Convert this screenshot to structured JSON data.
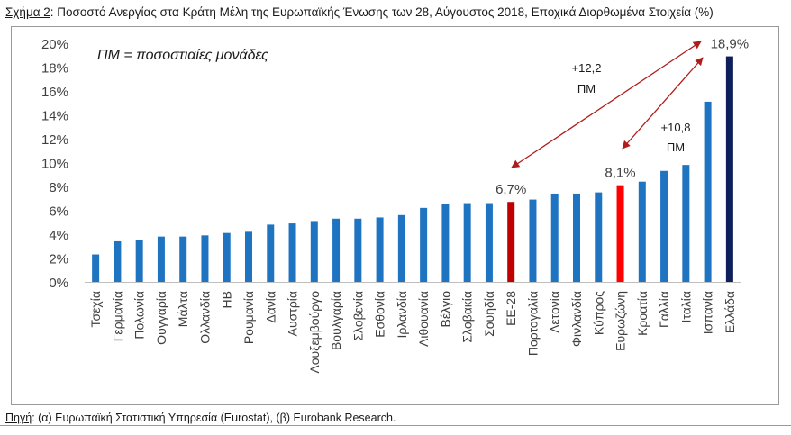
{
  "title": {
    "prefix": "Σχήμα 2",
    "text": ": Ποσοστό Ανεργίας στα Κράτη Μέλη της Ευρωπαϊκής Ένωσης των 28, Αύγουστος 2018, Εποχικά Διορθωμένα Στοιχεία (%)"
  },
  "source": {
    "prefix": "Πηγή",
    "text": ": (α) Ευρωπαϊκή Στατιστική Υπηρεσία (Eurostat), (β) Eurobank Research."
  },
  "chart_data": {
    "type": "bar",
    "categories": [
      "Τσεχία",
      "Γερμανία",
      "Πολωνία",
      "Ουγγαρία",
      "Μάλτα",
      "Ολλανδία",
      "ΗΒ",
      "Ρουμανία",
      "Δανία",
      "Αυστρία",
      "Λουξεμβούργο",
      "Βουλγαρία",
      "Σλοβενία",
      "Εσθονία",
      "Ιρλανδία",
      "Λιθουανία",
      "Βέλγιο",
      "Σλοβακία",
      "Σουηδία",
      "ΕΕ-28",
      "Πορτογαλία",
      "Λετονία",
      "Φινλανδία",
      "Κύπρος",
      "Ευρωζώνη",
      "Κροατία",
      "Γαλλία",
      "Ιταλία",
      "Ισπανία",
      "Ελλάδα"
    ],
    "values": [
      2.3,
      3.4,
      3.5,
      3.8,
      3.8,
      3.9,
      4.1,
      4.2,
      4.8,
      4.9,
      5.1,
      5.3,
      5.3,
      5.4,
      5.6,
      6.2,
      6.5,
      6.6,
      6.6,
      6.7,
      6.9,
      7.4,
      7.4,
      7.5,
      8.1,
      8.4,
      9.3,
      9.8,
      15.1,
      18.9
    ],
    "ylim": [
      0,
      20
    ],
    "yticks": [
      0,
      2,
      4,
      6,
      8,
      10,
      12,
      14,
      16,
      18,
      20
    ],
    "ytick_labels": [
      "0%",
      "2%",
      "4%",
      "6%",
      "8%",
      "10%",
      "12%",
      "14%",
      "16%",
      "18%",
      "20%"
    ],
    "grid": false,
    "colors": {
      "default": "#1f74c2",
      "eu28": "#c00000",
      "eurozone": "#ff0000",
      "greece": "#0e1f5b",
      "arrow": "#b01c1c"
    },
    "highlights": {
      "ΕΕ-28": "eu28",
      "Ευρωζώνη": "eurozone",
      "Ελλάδα": "greece"
    },
    "data_labels": [
      {
        "category": "ΕΕ-28",
        "text": "6,7%"
      },
      {
        "category": "Ευρωζώνη",
        "text": "8,1%"
      },
      {
        "category": "Ελλάδα",
        "text": "18,9%"
      }
    ],
    "annotations": {
      "note": "ΠΜ = ποσοστιαίες μονάδες",
      "diff_eu28": {
        "line1": "+12,2",
        "line2": "ΠΜ"
      },
      "diff_eurozone": {
        "line1": "+10,8",
        "line2": "ΠΜ"
      }
    }
  }
}
